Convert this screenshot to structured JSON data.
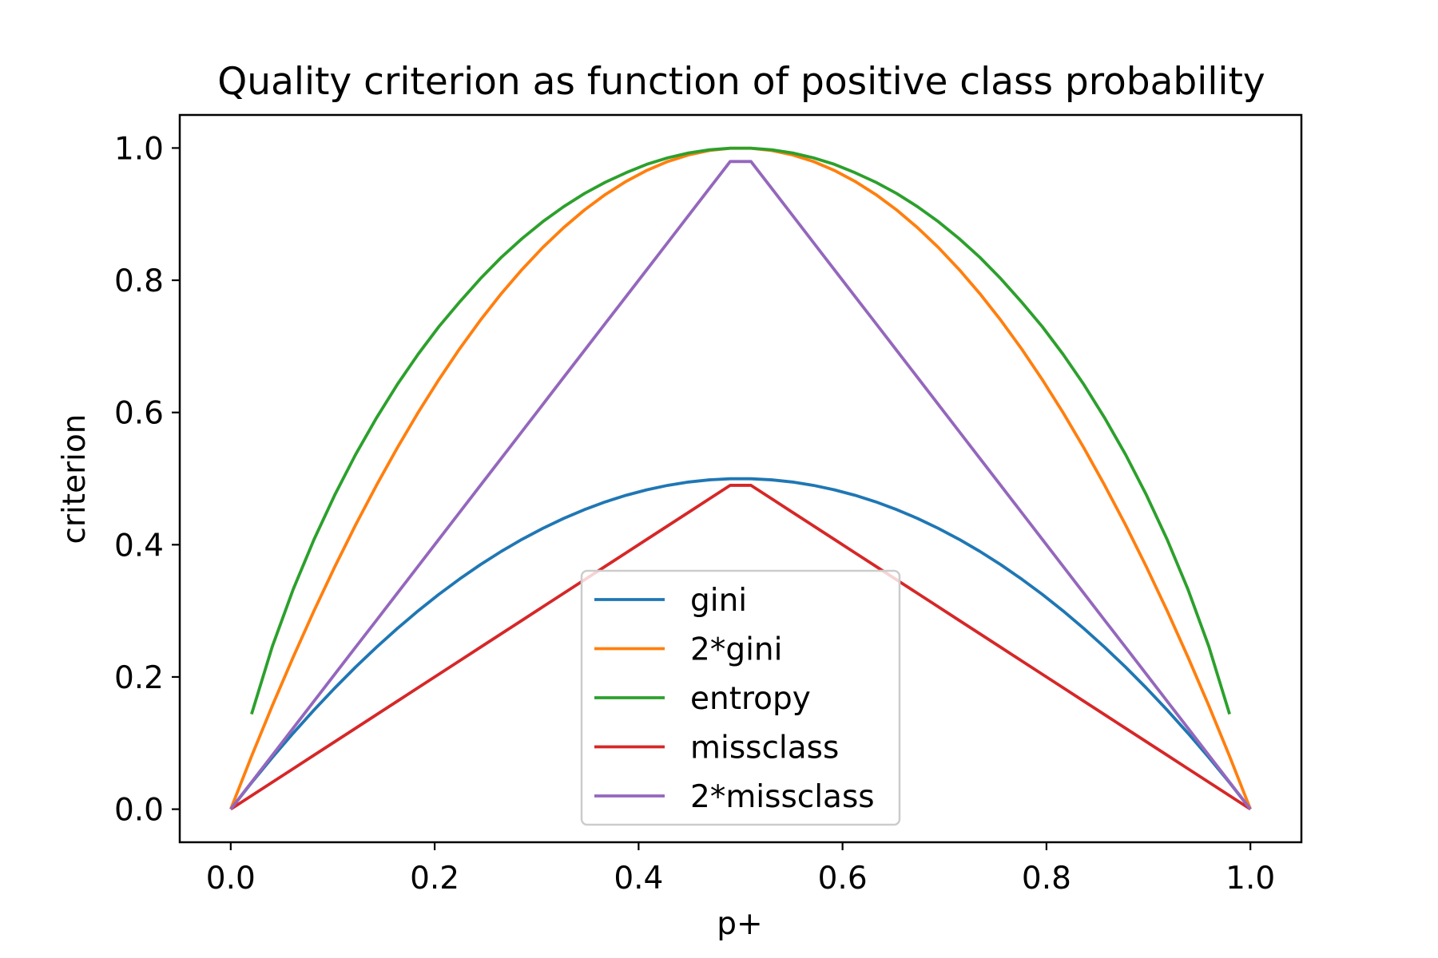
{
  "chart_data": {
    "type": "line",
    "title": "Quality criterion as function of positive class probability",
    "xlabel": "p+",
    "ylabel": "criterion",
    "xlim": [
      -0.05,
      1.05
    ],
    "ylim": [
      -0.05,
      1.05
    ],
    "xticks": [
      0.0,
      0.2,
      0.4,
      0.6,
      0.8,
      1.0
    ],
    "xtick_labels": [
      "0.0",
      "0.2",
      "0.4",
      "0.6",
      "0.8",
      "1.0"
    ],
    "yticks": [
      0.0,
      0.2,
      0.4,
      0.6,
      0.8,
      1.0
    ],
    "ytick_labels": [
      "0.0",
      "0.2",
      "0.4",
      "0.6",
      "0.8",
      "1.0"
    ],
    "grid": false,
    "legend_position": "lower center",
    "series": [
      {
        "name": "gini",
        "color": "#1f77b4",
        "x": [
          0.0,
          0.0204,
          0.0408,
          0.0612,
          0.0816,
          0.102,
          0.1224,
          0.1429,
          0.1633,
          0.1837,
          0.2041,
          0.2245,
          0.2449,
          0.2653,
          0.2857,
          0.3061,
          0.3265,
          0.3469,
          0.3673,
          0.3878,
          0.4082,
          0.4286,
          0.449,
          0.4694,
          0.4898,
          0.5102,
          0.5306,
          0.551,
          0.5714,
          0.5918,
          0.6122,
          0.6327,
          0.6531,
          0.6735,
          0.6939,
          0.7143,
          0.7347,
          0.7551,
          0.7755,
          0.7959,
          0.8163,
          0.8367,
          0.8571,
          0.8776,
          0.898,
          0.9184,
          0.9388,
          0.9592,
          0.9796,
          1.0
        ],
        "y": [
          0.0,
          0.04,
          0.0783,
          0.1149,
          0.1499,
          0.1832,
          0.2149,
          0.2449,
          0.2732,
          0.2999,
          0.3249,
          0.3482,
          0.3699,
          0.3899,
          0.4082,
          0.4248,
          0.4398,
          0.4531,
          0.4648,
          0.4748,
          0.4831,
          0.4898,
          0.4948,
          0.4981,
          0.4998,
          0.4998,
          0.4981,
          0.4948,
          0.4898,
          0.4831,
          0.4748,
          0.4648,
          0.4531,
          0.4398,
          0.4248,
          0.4082,
          0.3899,
          0.3699,
          0.3482,
          0.3249,
          0.2999,
          0.2732,
          0.2449,
          0.2149,
          0.1832,
          0.1499,
          0.1149,
          0.0783,
          0.04,
          0.0
        ]
      },
      {
        "name": "2*gini",
        "color": "#ff7f0e",
        "x": [
          0.0,
          0.0204,
          0.0408,
          0.0612,
          0.0816,
          0.102,
          0.1224,
          0.1429,
          0.1633,
          0.1837,
          0.2041,
          0.2245,
          0.2449,
          0.2653,
          0.2857,
          0.3061,
          0.3265,
          0.3469,
          0.3673,
          0.3878,
          0.4082,
          0.4286,
          0.449,
          0.4694,
          0.4898,
          0.5102,
          0.5306,
          0.551,
          0.5714,
          0.5918,
          0.6122,
          0.6327,
          0.6531,
          0.6735,
          0.6939,
          0.7143,
          0.7347,
          0.7551,
          0.7755,
          0.7959,
          0.8163,
          0.8367,
          0.8571,
          0.8776,
          0.898,
          0.9184,
          0.9388,
          0.9592,
          0.9796,
          1.0
        ],
        "y": [
          0.0,
          0.08,
          0.1566,
          0.2299,
          0.2999,
          0.3665,
          0.4298,
          0.4898,
          0.5464,
          0.5998,
          0.6497,
          0.6964,
          0.7397,
          0.7797,
          0.8163,
          0.8497,
          0.8796,
          0.9063,
          0.9296,
          0.9496,
          0.9663,
          0.9796,
          0.9896,
          0.9963,
          0.9996,
          0.9996,
          0.9963,
          0.9896,
          0.9796,
          0.9663,
          0.9496,
          0.9296,
          0.9063,
          0.8796,
          0.8497,
          0.8163,
          0.7797,
          0.7397,
          0.6964,
          0.6497,
          0.5998,
          0.5464,
          0.4898,
          0.4298,
          0.3665,
          0.2999,
          0.2299,
          0.1566,
          0.08,
          0.0
        ]
      },
      {
        "name": "entropy",
        "color": "#2ca02c",
        "x": [
          0.0204,
          0.0408,
          0.0612,
          0.0816,
          0.102,
          0.1224,
          0.1429,
          0.1633,
          0.1837,
          0.2041,
          0.2245,
          0.2449,
          0.2653,
          0.2857,
          0.3061,
          0.3265,
          0.3469,
          0.3673,
          0.3878,
          0.4082,
          0.4286,
          0.449,
          0.4694,
          0.4898,
          0.5102,
          0.5306,
          0.551,
          0.5714,
          0.5918,
          0.6122,
          0.6327,
          0.6531,
          0.6735,
          0.6939,
          0.7143,
          0.7347,
          0.7551,
          0.7755,
          0.7959,
          0.8163,
          0.8367,
          0.8571,
          0.8776,
          0.898,
          0.9184,
          0.9388,
          0.9592,
          0.9796
        ],
        "y": [
          0.1437,
          0.2462,
          0.3323,
          0.4077,
          0.4752,
          0.5363,
          0.5917,
          0.6422,
          0.688,
          0.7298,
          0.7672,
          0.8025,
          0.8346,
          0.8631,
          0.8887,
          0.9113,
          0.9312,
          0.9482,
          0.9627,
          0.9755,
          0.9852,
          0.9925,
          0.9973,
          0.9997,
          0.9997,
          0.9973,
          0.9925,
          0.9852,
          0.9755,
          0.9627,
          0.9482,
          0.9312,
          0.9113,
          0.8887,
          0.8631,
          0.8346,
          0.8025,
          0.7672,
          0.7298,
          0.688,
          0.6422,
          0.5917,
          0.5363,
          0.4752,
          0.4077,
          0.3323,
          0.2462,
          0.1437
        ]
      },
      {
        "name": "missclass",
        "color": "#d62728",
        "x": [
          0.0,
          0.0204,
          0.0408,
          0.0612,
          0.0816,
          0.102,
          0.1224,
          0.1429,
          0.1633,
          0.1837,
          0.2041,
          0.2245,
          0.2449,
          0.2653,
          0.2857,
          0.3061,
          0.3265,
          0.3469,
          0.3673,
          0.3878,
          0.4082,
          0.4286,
          0.449,
          0.4694,
          0.4898,
          0.5102,
          0.5306,
          0.551,
          0.5714,
          0.5918,
          0.6122,
          0.6327,
          0.6531,
          0.6735,
          0.6939,
          0.7143,
          0.7347,
          0.7551,
          0.7755,
          0.7959,
          0.8163,
          0.8367,
          0.8571,
          0.8776,
          0.898,
          0.9184,
          0.9388,
          0.9592,
          0.9796,
          1.0
        ],
        "y": [
          0.0,
          0.0204,
          0.0408,
          0.0612,
          0.0816,
          0.102,
          0.1224,
          0.1429,
          0.1633,
          0.1837,
          0.2041,
          0.2245,
          0.2449,
          0.2653,
          0.2857,
          0.3061,
          0.3265,
          0.3469,
          0.3673,
          0.3878,
          0.4082,
          0.4286,
          0.449,
          0.4694,
          0.4898,
          0.4898,
          0.4694,
          0.449,
          0.4286,
          0.4082,
          0.3878,
          0.3673,
          0.3469,
          0.3265,
          0.3061,
          0.2857,
          0.2653,
          0.2449,
          0.2245,
          0.2041,
          0.1837,
          0.1633,
          0.1429,
          0.1224,
          0.102,
          0.0816,
          0.0612,
          0.0408,
          0.0204,
          0.0
        ]
      },
      {
        "name": "2*missclass",
        "color": "#9467bd",
        "x": [
          0.0,
          0.0204,
          0.0408,
          0.0612,
          0.0816,
          0.102,
          0.1224,
          0.1429,
          0.1633,
          0.1837,
          0.2041,
          0.2245,
          0.2449,
          0.2653,
          0.2857,
          0.3061,
          0.3265,
          0.3469,
          0.3673,
          0.3878,
          0.4082,
          0.4286,
          0.449,
          0.4694,
          0.4898,
          0.5102,
          0.5306,
          0.551,
          0.5714,
          0.5918,
          0.6122,
          0.6327,
          0.6531,
          0.6735,
          0.6939,
          0.7143,
          0.7347,
          0.7551,
          0.7755,
          0.7959,
          0.8163,
          0.8367,
          0.8571,
          0.8776,
          0.898,
          0.9184,
          0.9388,
          0.9592,
          0.9796,
          1.0
        ],
        "y": [
          0.0,
          0.0408,
          0.0816,
          0.1224,
          0.1633,
          0.2041,
          0.2449,
          0.2857,
          0.3265,
          0.3673,
          0.4082,
          0.449,
          0.4898,
          0.5306,
          0.5714,
          0.6122,
          0.6531,
          0.6939,
          0.7347,
          0.7755,
          0.8163,
          0.8571,
          0.898,
          0.9388,
          0.9796,
          0.9796,
          0.9388,
          0.898,
          0.8571,
          0.8163,
          0.7755,
          0.7347,
          0.6939,
          0.6531,
          0.6122,
          0.5714,
          0.5306,
          0.4898,
          0.449,
          0.4082,
          0.3673,
          0.3265,
          0.2857,
          0.2449,
          0.2041,
          0.1633,
          0.1224,
          0.0816,
          0.0408,
          0.0
        ]
      }
    ]
  }
}
